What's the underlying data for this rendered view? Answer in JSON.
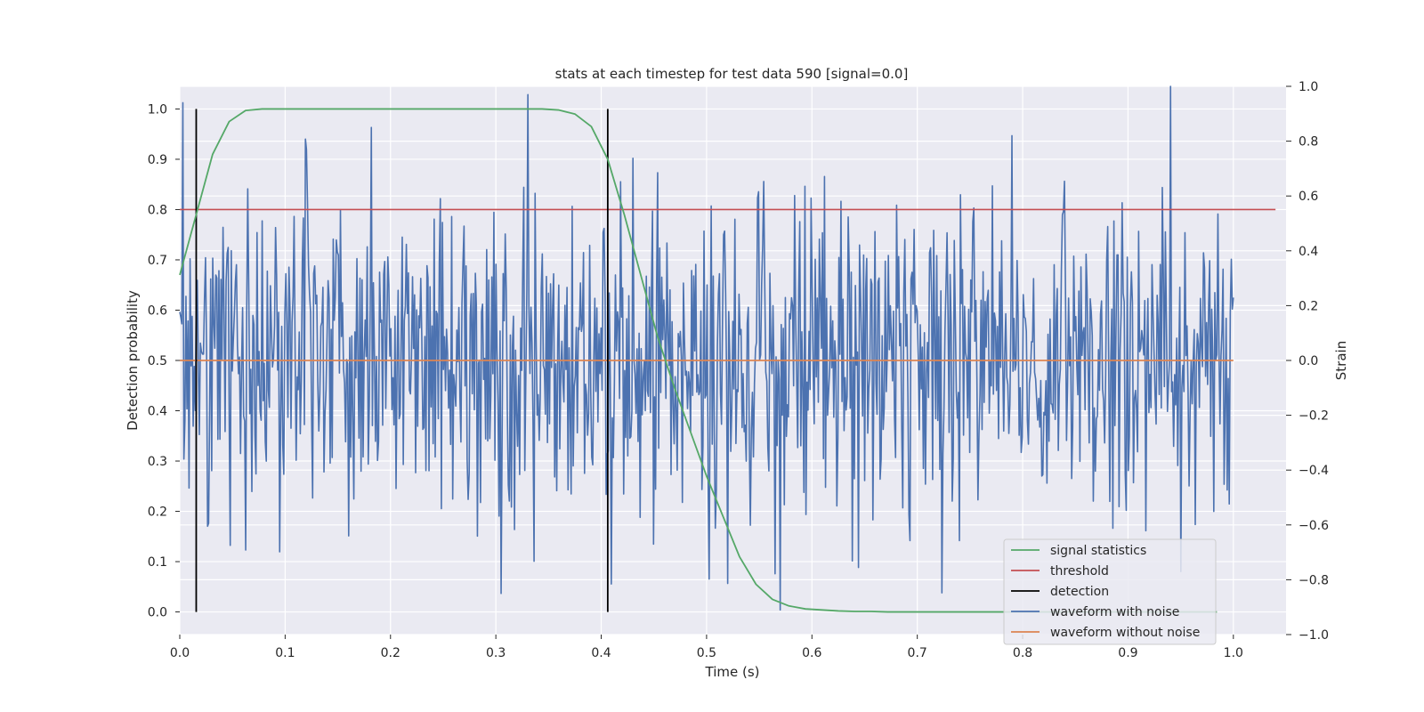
{
  "chart_data": {
    "type": "line",
    "title": "stats at each timestep for test data 590 [signal=0.0]",
    "xlabel": "Time (s)",
    "ylabel": "Detection probability",
    "ylabel_right": "Strain",
    "xlim": [
      0.0,
      1.05
    ],
    "ylim": [
      -0.045,
      1.045
    ],
    "ylim_right": [
      -1.0,
      1.0
    ],
    "xticks": [
      "0.0",
      "0.1",
      "0.2",
      "0.3",
      "0.4",
      "0.5",
      "0.6",
      "0.7",
      "0.8",
      "0.9",
      "1.0"
    ],
    "yticks": [
      "0.0",
      "0.1",
      "0.2",
      "0.3",
      "0.4",
      "0.5",
      "0.6",
      "0.7",
      "0.8",
      "0.9",
      "1.0"
    ],
    "yticks_right": [
      "−1.0",
      "−0.8",
      "−0.6",
      "−0.4",
      "−0.2",
      "0.0",
      "0.2",
      "0.4",
      "0.6",
      "0.8",
      "1.0"
    ],
    "grid": true,
    "legend_position": "lower-right",
    "colors": {
      "signal_statistics": "#55a868",
      "threshold": "#c44e52",
      "detection": "#000000",
      "waveform_with_noise": "#4c72b0",
      "waveform_without_noise": "#dd8452",
      "background": "#eaeaf2",
      "grid": "#ffffff"
    },
    "legend": [
      "signal statistics",
      "threshold",
      "detection",
      "waveform with noise",
      "waveform without noise"
    ],
    "series": [
      {
        "name": "signal statistics",
        "axis": "left",
        "x": [
          0.0,
          0.0156,
          0.0312,
          0.0469,
          0.0625,
          0.0781,
          0.0938,
          0.1094,
          0.125,
          0.1406,
          0.1562,
          0.1719,
          0.1875,
          0.2031,
          0.2188,
          0.2344,
          0.25,
          0.2656,
          0.2812,
          0.2969,
          0.3125,
          0.3281,
          0.3438,
          0.3594,
          0.375,
          0.3906,
          0.4062,
          0.4219,
          0.4375,
          0.4531,
          0.4688,
          0.4844,
          0.5,
          0.5156,
          0.5312,
          0.5469,
          0.5625,
          0.5781,
          0.5938,
          0.6094,
          0.625,
          0.6406,
          0.6562,
          0.6719,
          0.6875,
          0.7031,
          0.7188,
          0.7344,
          0.75,
          0.7656,
          0.7812,
          0.7969,
          0.8125,
          0.8281,
          0.8438,
          0.8594,
          0.875,
          0.8906,
          0.9062,
          0.9219,
          0.9375,
          0.9531,
          0.9688,
          0.9844
        ],
        "values": [
          0.67,
          0.79,
          0.91,
          0.975,
          0.997,
          1.0,
          1.0,
          1.0,
          1.0,
          1.0,
          1.0,
          1.0,
          1.0,
          1.0,
          1.0,
          1.0,
          1.0,
          1.0,
          1.0,
          1.0,
          1.0,
          1.0,
          1.0,
          0.998,
          0.99,
          0.965,
          0.9,
          0.79,
          0.67,
          0.55,
          0.45,
          0.36,
          0.27,
          0.19,
          0.11,
          0.055,
          0.025,
          0.012,
          0.006,
          0.004,
          0.002,
          0.001,
          0.001,
          0.0,
          0.0,
          0.0,
          0.0,
          0.0,
          0.0,
          0.0,
          0.0,
          0.0,
          0.0,
          0.0,
          0.0,
          0.0,
          0.0,
          0.0,
          0.0,
          0.0,
          0.0,
          0.0,
          0.0,
          0.0
        ]
      },
      {
        "name": "threshold",
        "axis": "left",
        "x": [
          0.0,
          1.04
        ],
        "values": [
          0.8,
          0.8
        ]
      },
      {
        "name": "detection",
        "axis": "left",
        "x": [
          0.0156,
          0.4062
        ],
        "ymin": 0.0,
        "ymax": 1.0
      },
      {
        "name": "waveform with noise",
        "axis": "right",
        "x_range": [
          0.0,
          1.0
        ],
        "num_samples": 1024,
        "approx_std": 0.3,
        "peaks": [
          {
            "x": 0.003,
            "value": 0.94
          },
          {
            "x": 0.12,
            "value": 0.77
          },
          {
            "x": 0.33,
            "value": 0.97
          },
          {
            "x": 0.57,
            "value": -0.91
          },
          {
            "x": 0.79,
            "value": 0.82
          },
          {
            "x": 0.94,
            "value": 1.0
          },
          {
            "x": 0.95,
            "value": -0.77
          }
        ]
      },
      {
        "name": "waveform without noise",
        "axis": "right",
        "x": [
          0.0,
          1.0
        ],
        "values": [
          0.0,
          0.0
        ]
      }
    ]
  }
}
